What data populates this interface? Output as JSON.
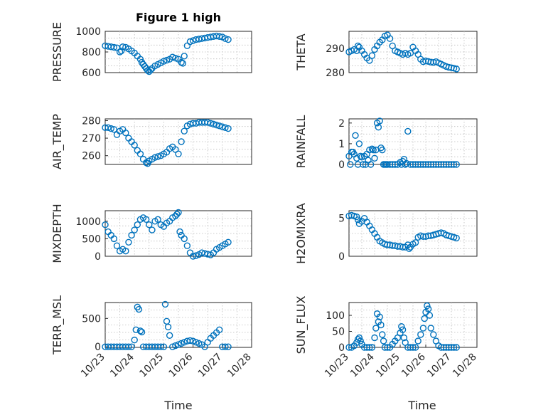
{
  "figure": {
    "title": "Figure 1 high",
    "xlabel": "Time",
    "color": "#0072BD"
  },
  "chart_data": [
    {
      "type": "scatter",
      "title": "Figure 1 high",
      "ylabel": "PRESSURE",
      "ylim": [
        600,
        1000
      ],
      "yticks": [
        "600",
        "800",
        "1000"
      ],
      "xlim": [
        0,
        5
      ],
      "xticks": [],
      "grid": true,
      "x": [
        0.0,
        0.1,
        0.2,
        0.3,
        0.4,
        0.5,
        0.55,
        0.6,
        0.7,
        0.8,
        0.9,
        1.0,
        1.1,
        1.2,
        1.25,
        1.3,
        1.35,
        1.4,
        1.45,
        1.5,
        1.55,
        1.6,
        1.7,
        1.8,
        1.9,
        2.0,
        2.1,
        2.2,
        2.3,
        2.4,
        2.5,
        2.6,
        2.65,
        2.7,
        2.8,
        2.9,
        3.0,
        3.1,
        3.2,
        3.3,
        3.4,
        3.5,
        3.6,
        3.7,
        3.8,
        3.9,
        4.0,
        4.1,
        4.2
      ],
      "y": [
        860,
        855,
        850,
        845,
        840,
        800,
        810,
        850,
        845,
        830,
        810,
        790,
        760,
        730,
        700,
        680,
        660,
        640,
        620,
        610,
        625,
        640,
        665,
        680,
        695,
        710,
        720,
        730,
        750,
        740,
        730,
        700,
        690,
        760,
        860,
        900,
        910,
        920,
        925,
        930,
        935,
        940,
        945,
        950,
        955,
        950,
        945,
        930,
        920
      ]
    },
    {
      "type": "scatter",
      "ylabel": "THETA",
      "ylim": [
        280,
        297
      ],
      "yticks": [
        "280",
        "290"
      ],
      "xlim": [
        0,
        5
      ],
      "xticks": [],
      "grid": true,
      "x": [
        0.0,
        0.1,
        0.2,
        0.3,
        0.35,
        0.4,
        0.5,
        0.6,
        0.7,
        0.8,
        0.9,
        1.0,
        1.1,
        1.2,
        1.3,
        1.4,
        1.5,
        1.6,
        1.7,
        1.8,
        1.9,
        2.0,
        2.1,
        2.2,
        2.3,
        2.4,
        2.5,
        2.6,
        2.7,
        2.8,
        2.9,
        3.0,
        3.1,
        3.2,
        3.3,
        3.4,
        3.5,
        3.6,
        3.7,
        3.8,
        3.9,
        4.0,
        4.1,
        4.2
      ],
      "y": [
        288.5,
        289,
        289.5,
        289,
        291,
        290.5,
        289,
        287.5,
        286,
        285,
        287,
        289.5,
        291,
        292.5,
        293.5,
        295,
        295.5,
        294,
        291,
        289,
        288.5,
        288,
        287.5,
        288,
        287.5,
        288,
        290.5,
        289,
        287.5,
        285.5,
        284.5,
        284.8,
        284.6,
        284.3,
        284.2,
        284.5,
        284,
        283.5,
        283,
        282.5,
        282.2,
        282,
        281.8,
        281.5
      ]
    },
    {
      "type": "scatter",
      "ylabel": "AIR_TEMP",
      "ylim": [
        255,
        281
      ],
      "yticks": [
        "260",
        "270",
        "280"
      ],
      "xlim": [
        0,
        5
      ],
      "xticks": [],
      "grid": true,
      "x": [
        0.0,
        0.1,
        0.2,
        0.3,
        0.4,
        0.5,
        0.6,
        0.7,
        0.8,
        0.9,
        1.0,
        1.1,
        1.2,
        1.3,
        1.4,
        1.45,
        1.5,
        1.6,
        1.7,
        1.8,
        1.9,
        2.0,
        2.1,
        2.2,
        2.3,
        2.4,
        2.5,
        2.6,
        2.7,
        2.8,
        2.9,
        3.0,
        3.1,
        3.2,
        3.3,
        3.4,
        3.5,
        3.6,
        3.7,
        3.8,
        3.9,
        4.0,
        4.1,
        4.2
      ],
      "y": [
        276,
        276,
        275.5,
        275,
        272,
        274,
        275,
        273,
        270,
        268,
        266,
        263,
        261,
        258,
        256,
        255.5,
        257,
        258,
        259,
        259.5,
        260,
        261,
        262,
        264,
        265,
        263.5,
        261,
        268,
        274,
        277,
        278,
        278.5,
        278.5,
        279,
        279,
        279,
        279,
        278.5,
        278,
        277.5,
        277,
        276.5,
        276,
        275.5
      ]
    },
    {
      "type": "scatter",
      "ylabel": "RAINFALL",
      "ylim": [
        0,
        2.2
      ],
      "yticks": [
        "0",
        "1",
        "2"
      ],
      "xlim": [
        0,
        5
      ],
      "xticks": [],
      "grid": true,
      "x": [
        0.0,
        0.05,
        0.1,
        0.15,
        0.2,
        0.25,
        0.3,
        0.35,
        0.4,
        0.45,
        0.5,
        0.55,
        0.6,
        0.65,
        0.7,
        0.75,
        0.8,
        0.85,
        0.9,
        0.95,
        1.0,
        1.05,
        1.1,
        1.15,
        1.2,
        1.25,
        1.3,
        1.35,
        1.4,
        1.45,
        1.5,
        1.6,
        1.7,
        1.8,
        1.9,
        2.0,
        2.05,
        2.1,
        2.15,
        2.2,
        2.25,
        2.3,
        2.4,
        2.5,
        2.6,
        2.7,
        2.8,
        2.9,
        3.0,
        3.1,
        3.2,
        3.3,
        3.4,
        3.5,
        3.6,
        3.7,
        3.8,
        3.9,
        4.0,
        4.1,
        4.2
      ],
      "y": [
        0.4,
        0,
        0.6,
        0.6,
        0.5,
        1.4,
        0.3,
        0,
        1.0,
        0.4,
        0.35,
        0,
        0.4,
        0,
        0.5,
        0.2,
        0.7,
        0,
        0.75,
        0.7,
        0.3,
        0.7,
        2.0,
        1.8,
        2.1,
        0.8,
        0.7,
        0,
        0,
        0,
        0,
        0,
        0,
        0,
        0,
        0.1,
        0,
        0.15,
        0.25,
        0,
        0.05,
        1.6,
        0,
        0,
        0,
        0,
        0,
        0,
        0,
        0,
        0,
        0,
        0,
        0,
        0,
        0,
        0,
        0,
        0,
        0,
        0
      ]
    },
    {
      "type": "scatter",
      "ylabel": "MIXDEPTH",
      "ylim": [
        0,
        1300
      ],
      "yticks": [
        "0",
        "500",
        "1000"
      ],
      "xlim": [
        0,
        5
      ],
      "xticks": [],
      "grid": true,
      "x": [
        0.0,
        0.1,
        0.2,
        0.3,
        0.4,
        0.5,
        0.6,
        0.7,
        0.8,
        0.9,
        1.0,
        1.1,
        1.2,
        1.3,
        1.4,
        1.5,
        1.6,
        1.7,
        1.8,
        1.9,
        2.0,
        2.1,
        2.2,
        2.3,
        2.4,
        2.45,
        2.5,
        2.55,
        2.6,
        2.7,
        2.8,
        2.9,
        3.0,
        3.1,
        3.2,
        3.3,
        3.4,
        3.5,
        3.6,
        3.7,
        3.8,
        3.9,
        4.0,
        4.1,
        4.2
      ],
      "y": [
        900,
        700,
        600,
        500,
        300,
        150,
        200,
        150,
        400,
        600,
        750,
        900,
        1050,
        1100,
        1050,
        900,
        750,
        1000,
        1050,
        900,
        850,
        950,
        1000,
        1100,
        1150,
        1200,
        1250,
        700,
        600,
        500,
        300,
        100,
        0,
        20,
        50,
        100,
        80,
        60,
        40,
        100,
        200,
        250,
        300,
        350,
        400
      ]
    },
    {
      "type": "scatter",
      "ylabel": "H2OMIXRA",
      "ylim": [
        0,
        6
      ],
      "yticks": [
        "0",
        "5"
      ],
      "xlim": [
        0,
        5
      ],
      "xticks": [],
      "grid": true,
      "x": [
        0.0,
        0.1,
        0.2,
        0.3,
        0.35,
        0.4,
        0.5,
        0.6,
        0.7,
        0.8,
        0.9,
        1.0,
        1.1,
        1.2,
        1.3,
        1.4,
        1.5,
        1.6,
        1.7,
        1.8,
        1.9,
        2.0,
        2.1,
        2.2,
        2.3,
        2.35,
        2.4,
        2.5,
        2.6,
        2.7,
        2.8,
        2.9,
        3.0,
        3.1,
        3.2,
        3.3,
        3.4,
        3.5,
        3.6,
        3.7,
        3.8,
        3.9,
        4.0,
        4.1,
        4.2
      ],
      "y": [
        5.3,
        5.4,
        5.3,
        5.2,
        4.8,
        4.3,
        4.6,
        5.0,
        4.5,
        4.0,
        3.5,
        3.0,
        2.5,
        2.0,
        1.8,
        1.6,
        1.5,
        1.5,
        1.4,
        1.4,
        1.3,
        1.3,
        1.2,
        1.2,
        1.5,
        1.0,
        1.2,
        1.6,
        1.8,
        2.5,
        2.7,
        2.6,
        2.6,
        2.7,
        2.7,
        2.8,
        2.9,
        3.0,
        3.1,
        3.0,
        2.8,
        2.7,
        2.6,
        2.5,
        2.4
      ]
    },
    {
      "type": "scatter",
      "ylabel": "TERR_MSL",
      "ylim": [
        -10,
        780
      ],
      "yticks": [
        "0",
        "500"
      ],
      "xlim": [
        0,
        5
      ],
      "xticks": [
        "10/23",
        "10/24",
        "10/25",
        "10/26",
        "10/27",
        "10/28"
      ],
      "grid": true,
      "x": [
        0.0,
        0.1,
        0.2,
        0.3,
        0.4,
        0.5,
        0.6,
        0.7,
        0.8,
        0.9,
        1.0,
        1.05,
        1.1,
        1.15,
        1.2,
        1.25,
        1.3,
        1.4,
        1.5,
        1.6,
        1.7,
        1.8,
        1.9,
        2.0,
        2.05,
        2.1,
        2.15,
        2.2,
        2.3,
        2.4,
        2.5,
        2.6,
        2.7,
        2.8,
        2.9,
        3.0,
        3.1,
        3.2,
        3.3,
        3.4,
        3.5,
        3.6,
        3.7,
        3.8,
        3.9,
        4.0,
        4.1,
        4.2
      ],
      "y": [
        0,
        0,
        0,
        0,
        0,
        0,
        0,
        0,
        0,
        0,
        120,
        300,
        700,
        660,
        280,
        260,
        0,
        0,
        0,
        0,
        0,
        0,
        0,
        0,
        750,
        450,
        350,
        200,
        0,
        20,
        40,
        60,
        80,
        100,
        110,
        100,
        80,
        60,
        40,
        0,
        80,
        150,
        200,
        250,
        300,
        0,
        0,
        0
      ]
    },
    {
      "type": "scatter",
      "ylabel": "SUN_FLUX",
      "ylim": [
        0,
        140
      ],
      "yticks": [
        "0",
        "50",
        "100"
      ],
      "xlim": [
        0,
        5
      ],
      "xticks": [
        "10/23",
        "10/24",
        "10/25",
        "10/26",
        "10/27",
        "10/28"
      ],
      "grid": true,
      "x": [
        0.0,
        0.1,
        0.2,
        0.3,
        0.35,
        0.4,
        0.45,
        0.5,
        0.6,
        0.7,
        0.8,
        0.9,
        1.0,
        1.05,
        1.1,
        1.15,
        1.2,
        1.25,
        1.3,
        1.35,
        1.4,
        1.5,
        1.6,
        1.7,
        1.8,
        1.9,
        2.0,
        2.05,
        2.1,
        2.15,
        2.2,
        2.3,
        2.4,
        2.5,
        2.6,
        2.7,
        2.8,
        2.9,
        2.95,
        3.0,
        3.05,
        3.1,
        3.15,
        3.2,
        3.3,
        3.4,
        3.5,
        3.6,
        3.7,
        3.8,
        3.9,
        4.0,
        4.1,
        4.2
      ],
      "y": [
        0,
        0,
        5,
        15,
        25,
        30,
        20,
        10,
        0,
        0,
        0,
        0,
        30,
        60,
        105,
        80,
        95,
        70,
        40,
        20,
        0,
        0,
        0,
        10,
        20,
        30,
        45,
        65,
        55,
        30,
        15,
        0,
        0,
        0,
        0,
        20,
        40,
        60,
        90,
        110,
        130,
        120,
        100,
        60,
        40,
        20,
        5,
        0,
        0,
        0,
        0,
        0,
        0,
        0
      ]
    }
  ]
}
